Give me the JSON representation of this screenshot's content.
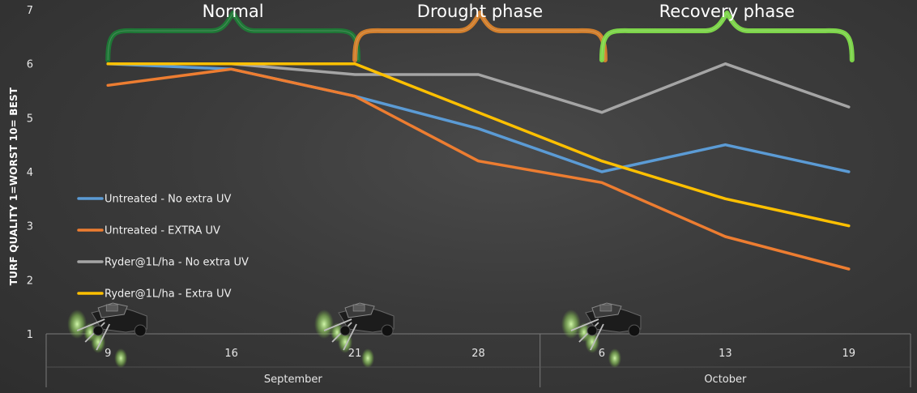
{
  "chart_data": {
    "type": "line",
    "title": "",
    "ylabel": "TURF QUALITY 1=WORST 10= BEST",
    "xlabel": "",
    "categories": [
      "9",
      "16",
      "21",
      "28",
      "6",
      "13",
      "19"
    ],
    "months": [
      {
        "name": "September",
        "span": [
          0,
          3
        ]
      },
      {
        "name": "October",
        "span": [
          4,
          6
        ]
      }
    ],
    "ylim": [
      1,
      7
    ],
    "yticks": [
      "1",
      "2",
      "3",
      "4",
      "5",
      "6",
      "7"
    ],
    "grid": false,
    "legend": "middle-left",
    "series": [
      {
        "name": "Untreated - No extra UV",
        "color": "#5b9bd5",
        "values": [
          6.0,
          5.9,
          5.4,
          4.8,
          4.0,
          4.5,
          4.0
        ]
      },
      {
        "name": "Untreated - EXTRA UV",
        "color": "#ed7d31",
        "values": [
          5.6,
          5.9,
          5.4,
          4.2,
          3.8,
          2.8,
          2.2
        ]
      },
      {
        "name": "Ryder@1L/ha - No extra UV",
        "color": "#a5a5a5",
        "values": [
          6.0,
          6.0,
          5.8,
          5.8,
          5.1,
          6.0,
          5.2
        ]
      },
      {
        "name": "Ryder@1L/ha - Extra UV",
        "color": "#ffc000",
        "values": [
          6.0,
          6.0,
          6.0,
          5.1,
          4.2,
          3.5,
          3.0
        ]
      }
    ],
    "annotations": [
      {
        "label": "Normal",
        "color": "#1e7a36",
        "span": [
          0,
          2
        ]
      },
      {
        "label": "Drought phase",
        "color": "#d9822b",
        "span": [
          2,
          4
        ]
      },
      {
        "label": "Recovery phase",
        "color": "#7fdc4a",
        "span": [
          4,
          6
        ]
      }
    ],
    "sprayer_images_at": [
      0,
      2,
      4
    ]
  }
}
